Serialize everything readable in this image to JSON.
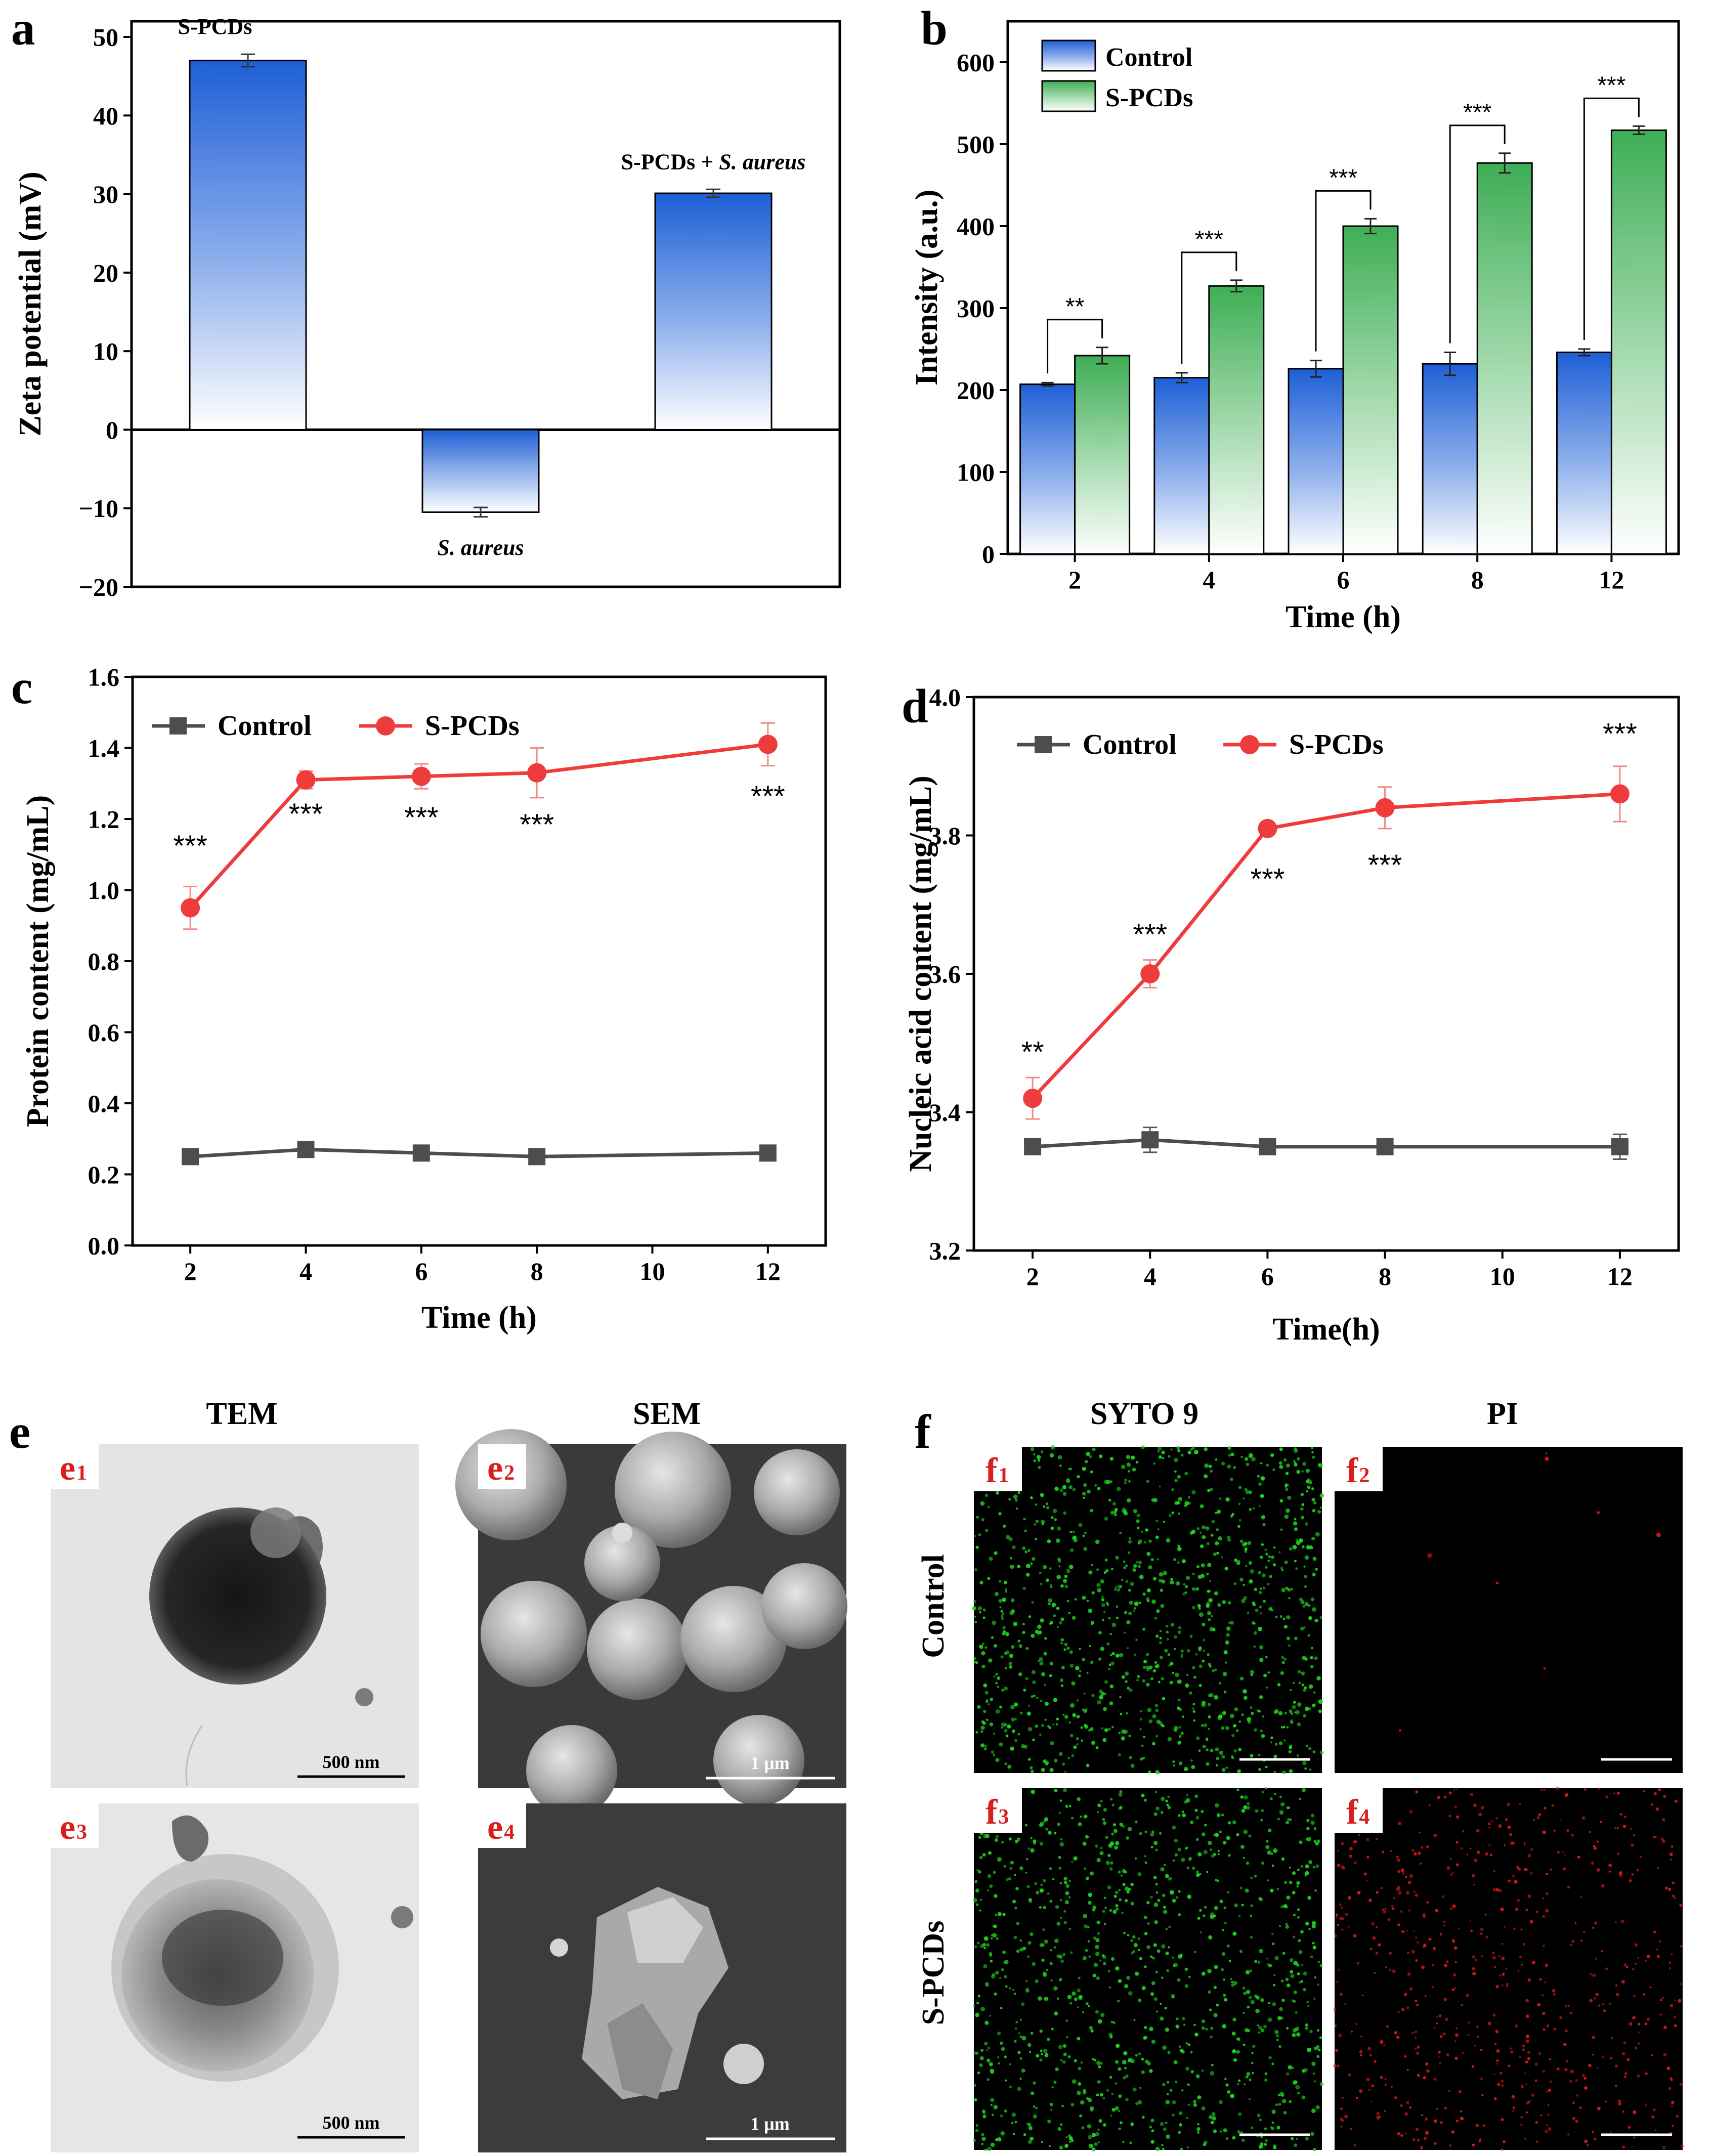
{
  "chart_data": [
    {
      "id": "a",
      "type": "bar",
      "panel_label": "a",
      "title": "",
      "xlabel": "",
      "ylabel": "Zeta potential (mV)",
      "ylim": [
        -20,
        52
      ],
      "yticks": [
        -20,
        -10,
        0,
        10,
        20,
        30,
        40,
        50
      ],
      "ytick_labels": [
        "−20",
        "−10",
        "0",
        "10",
        "20",
        "30",
        "40",
        "50"
      ],
      "categories": [
        "S-PCDs",
        "S. aureus",
        "S-PCDs + S. aureus"
      ],
      "values": [
        47.0,
        -10.5,
        30.1
      ],
      "errors": [
        0.8,
        0.6,
        0.5
      ],
      "bar_labels": [
        {
          "parts": [
            {
              "text": "S-PCDs",
              "italic": false
            }
          ]
        },
        {
          "parts": [
            {
              "text": "S. aureus",
              "italic": true
            }
          ]
        },
        {
          "parts": [
            {
              "text": "S-PCDs + ",
              "italic": false
            },
            {
              "text": "S. aureus",
              "italic": true
            }
          ]
        }
      ]
    },
    {
      "id": "b",
      "type": "bar",
      "panel_label": "b",
      "title": "",
      "xlabel": "Time (h)",
      "ylabel": "Intensity (a.u.)",
      "ylim": [
        0,
        650
      ],
      "yticks": [
        0,
        100,
        200,
        300,
        400,
        500,
        600
      ],
      "categories": [
        "2",
        "4",
        "6",
        "8",
        "12"
      ],
      "legend": "top-left",
      "series": [
        {
          "name": "Control",
          "values": [
            207,
            215,
            226,
            232,
            246
          ],
          "errors": [
            2,
            6,
            10,
            14,
            4
          ]
        },
        {
          "name": "S-PCDs",
          "values": [
            242,
            327,
            400,
            477,
            517
          ],
          "errors": [
            10,
            7,
            9,
            12,
            5
          ]
        }
      ],
      "significance": [
        "**",
        "***",
        "***",
        "***",
        "***"
      ]
    },
    {
      "id": "c",
      "type": "line",
      "panel_label": "c",
      "title": "",
      "xlabel": "Time (h)",
      "ylabel": "Protein content (mg/mL)",
      "xlim": [
        1,
        13
      ],
      "xticks": [
        2,
        4,
        6,
        8,
        10,
        12
      ],
      "ylim": [
        0.0,
        1.6
      ],
      "yticks": [
        0.0,
        0.2,
        0.4,
        0.6,
        0.8,
        1.0,
        1.2,
        1.4,
        1.6
      ],
      "ytick_labels": [
        "0.0",
        "0.2",
        "0.4",
        "0.6",
        "0.8",
        "1.0",
        "1.2",
        "1.4",
        "1.6"
      ],
      "x": [
        2,
        4,
        6,
        8,
        12
      ],
      "legend": "top-left",
      "series": [
        {
          "name": "Control",
          "marker": "square",
          "values": [
            0.25,
            0.27,
            0.26,
            0.25,
            0.26
          ],
          "errors": [
            0.005,
            0.005,
            0.005,
            0.005,
            0.005
          ]
        },
        {
          "name": "S-PCDs",
          "marker": "circle",
          "values": [
            0.95,
            1.31,
            1.32,
            1.33,
            1.41
          ],
          "errors": [
            0.06,
            0.025,
            0.035,
            0.07,
            0.06
          ]
        }
      ],
      "annotations": [
        {
          "x": 2,
          "y": 1.13,
          "text": "***"
        },
        {
          "x": 4,
          "y": 1.22,
          "text": "***"
        },
        {
          "x": 6,
          "y": 1.21,
          "text": "***"
        },
        {
          "x": 8,
          "y": 1.19,
          "text": "***"
        },
        {
          "x": 12,
          "y": 1.27,
          "text": "***"
        }
      ]
    },
    {
      "id": "d",
      "type": "line",
      "panel_label": "d",
      "title": "",
      "xlabel": "Time(h)",
      "ylabel": "Nucleic acid content (mg/mL)",
      "xlim": [
        1,
        13
      ],
      "xticks": [
        2,
        4,
        6,
        8,
        10,
        12
      ],
      "ylim": [
        3.2,
        4.0
      ],
      "yticks": [
        3.2,
        3.4,
        3.6,
        3.8,
        4.0
      ],
      "ytick_labels": [
        "3.2",
        "3.4",
        "3.6",
        "3.8",
        "4.0"
      ],
      "x": [
        2,
        4,
        6,
        8,
        12
      ],
      "legend": "top-left",
      "series": [
        {
          "name": "Control",
          "marker": "square",
          "values": [
            3.35,
            3.36,
            3.35,
            3.35,
            3.35
          ],
          "errors": [
            0.008,
            0.018,
            0.005,
            0.005,
            0.018
          ]
        },
        {
          "name": "S-PCDs",
          "marker": "circle",
          "values": [
            3.42,
            3.6,
            3.81,
            3.84,
            3.86
          ],
          "errors": [
            0.03,
            0.02,
            0.005,
            0.03,
            0.04
          ]
        }
      ],
      "annotations": [
        {
          "x": 2,
          "y": 3.49,
          "text": "**"
        },
        {
          "x": 4,
          "y": 3.66,
          "text": "***"
        },
        {
          "x": 6,
          "y": 3.74,
          "text": "***"
        },
        {
          "x": 8,
          "y": 3.76,
          "text": "***"
        },
        {
          "x": 12,
          "y": 3.95,
          "text": "***"
        }
      ]
    }
  ],
  "micrographs": {
    "e": {
      "panel_label": "e",
      "columns": [
        "TEM",
        "SEM"
      ],
      "tiles": [
        {
          "sub": "e",
          "idx": "1",
          "scale": "500 nm"
        },
        {
          "sub": "e",
          "idx": "2",
          "scale": "1 μm"
        },
        {
          "sub": "e",
          "idx": "3",
          "scale": "500 nm"
        },
        {
          "sub": "e",
          "idx": "4",
          "scale": "1 μm"
        }
      ]
    },
    "f": {
      "panel_label": "f",
      "columns": [
        "SYTO 9",
        "PI"
      ],
      "rows": [
        "Control",
        "S-PCDs"
      ],
      "tiles": [
        {
          "sub": "f",
          "idx": "1"
        },
        {
          "sub": "f",
          "idx": "2"
        },
        {
          "sub": "f",
          "idx": "3"
        },
        {
          "sub": "f",
          "idx": "4"
        }
      ]
    }
  },
  "colors": {
    "blue": "#1e5fd6",
    "green": "#3fae56",
    "red": "#ee3b3b",
    "gray": "#4d4d4d",
    "sig_line": "#000000",
    "fluor_bg": "#000000",
    "syto": "#1fd31f",
    "pi": "#d81a1a"
  }
}
